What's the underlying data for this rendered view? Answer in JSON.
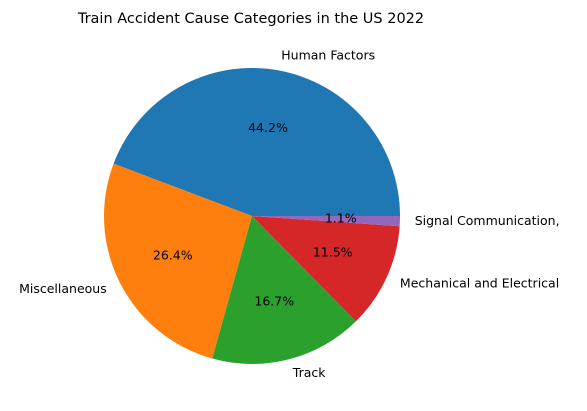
{
  "chart_data": {
    "type": "pie",
    "title": "Train Accident Cause Categories in the US 2022",
    "slices": [
      {
        "label": "Human Factors",
        "value": 44.2,
        "pct_label": "44.2%",
        "color": "#1f77b4"
      },
      {
        "label": "Miscellaneous",
        "value": 26.4,
        "pct_label": "26.4%",
        "color": "#ff7f0e"
      },
      {
        "label": "Track",
        "value": 16.7,
        "pct_label": "16.7%",
        "color": "#2ca02c"
      },
      {
        "label": "Mechanical and Electrical",
        "value": 11.5,
        "pct_label": "11.5%",
        "color": "#d62728"
      },
      {
        "label": "Signal Communication,",
        "value": 1.1,
        "pct_label": "1.1%",
        "color": "#9467bd"
      }
    ],
    "start_angle_deg": 0,
    "direction": "counterclockwise",
    "legend": "none"
  }
}
